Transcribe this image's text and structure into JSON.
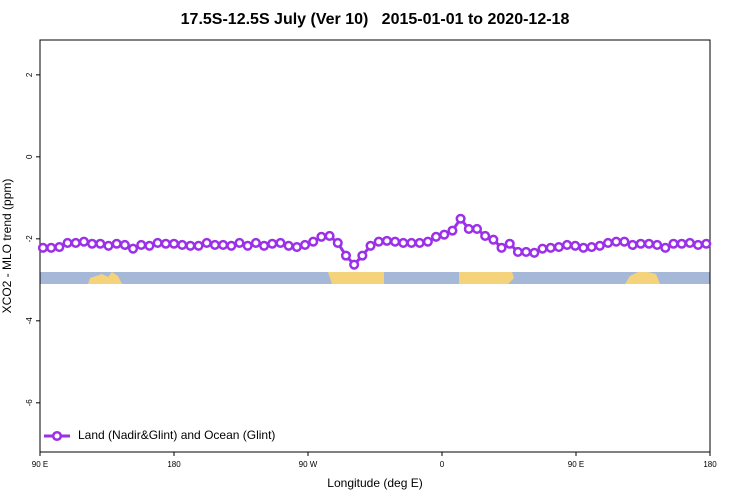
{
  "chart_data": {
    "type": "line",
    "title": "17.5S-12.5S July (Ver 10)   2015-01-01 to 2020-12-18",
    "x_label": "Longitude (deg E)",
    "y_label": "XCO2 - MLO trend (ppm)",
    "xlim": [
      90,
      540
    ],
    "ylim": [
      -7.2,
      2.85
    ],
    "xticks": [
      {
        "value": 90,
        "label": "90 E"
      },
      {
        "value": 180,
        "label": "180"
      },
      {
        "value": 270,
        "label": "90 W"
      },
      {
        "value": 360,
        "label": "0"
      },
      {
        "value": 450,
        "label": "90 E"
      },
      {
        "value": 540,
        "label": "180"
      }
    ],
    "yticks": [
      -6,
      -4,
      -2,
      0,
      2
    ],
    "grid": false,
    "legend": "bottom left",
    "x": [
      92,
      97.5,
      103,
      108.5,
      114,
      119.5,
      125,
      130.5,
      136,
      141.5,
      147,
      152.5,
      158,
      163.5,
      169,
      174.5,
      180,
      185.5,
      191,
      196.5,
      202,
      207.5,
      213,
      218.5,
      224,
      229.5,
      235,
      240.5,
      246,
      251.5,
      257,
      262.5,
      268,
      273.5,
      279,
      284.5,
      290,
      295.5,
      301,
      306.5,
      312,
      317.5,
      323,
      328.5,
      334,
      339.5,
      345,
      350.5,
      356,
      361.5,
      367,
      372.5,
      378,
      383.5,
      389,
      394.5,
      400,
      405.5,
      411,
      416.5,
      422,
      427.5,
      433,
      438.5,
      444,
      449.5,
      455,
      460.5,
      466,
      471.5,
      477,
      482.5,
      488,
      493.5,
      499,
      504.5,
      510,
      515.5,
      521,
      526.5,
      532,
      537.5
    ],
    "series": [
      {
        "name": "Land (Nadir&Glint) and Ocean (Glint)",
        "color": "#9b30e8",
        "values": [
          -2.22,
          -2.22,
          -2.2,
          -2.1,
          -2.1,
          -2.07,
          -2.12,
          -2.12,
          -2.17,
          -2.12,
          -2.15,
          -2.24,
          -2.15,
          -2.17,
          -2.1,
          -2.12,
          -2.12,
          -2.15,
          -2.17,
          -2.17,
          -2.1,
          -2.15,
          -2.15,
          -2.17,
          -2.1,
          -2.17,
          -2.1,
          -2.17,
          -2.12,
          -2.1,
          -2.17,
          -2.2,
          -2.15,
          -2.07,
          -1.95,
          -1.93,
          -2.1,
          -2.41,
          -2.63,
          -2.41,
          -2.17,
          -2.07,
          -2.05,
          -2.07,
          -2.1,
          -2.1,
          -2.1,
          -2.07,
          -1.95,
          -1.9,
          -1.8,
          -1.51,
          -1.76,
          -1.76,
          -1.93,
          -2.02,
          -2.22,
          -2.12,
          -2.32,
          -2.32,
          -2.34,
          -2.24,
          -2.22,
          -2.2,
          -2.15,
          -2.17,
          -2.22,
          -2.2,
          -2.17,
          -2.1,
          -2.07,
          -2.07,
          -2.15,
          -2.12,
          -2.12,
          -2.15,
          -2.22,
          -2.12,
          -2.12,
          -2.1,
          -2.15,
          -2.12
        ]
      }
    ]
  }
}
